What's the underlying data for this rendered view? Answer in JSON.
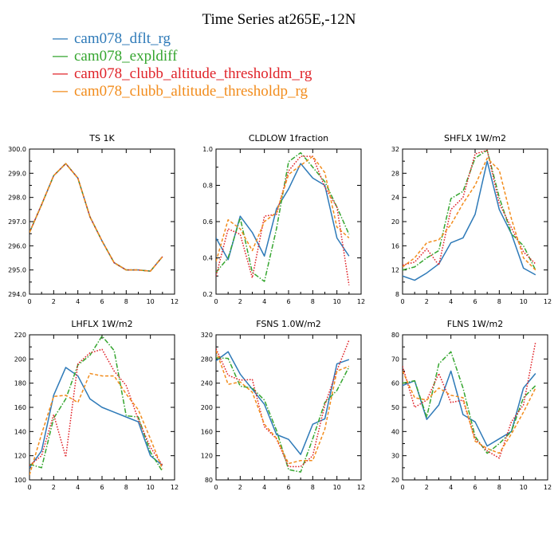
{
  "title": "Time Series at265E,-12N",
  "legend": [
    {
      "label": "cam078_dflt_rg",
      "color": "#2e7ab8",
      "dash": "solid"
    },
    {
      "label": "cam078_expldiff",
      "color": "#36a630",
      "dash": "dashdot"
    },
    {
      "label": "cam078_clubb_altitude_thresholdm_rg",
      "color": "#e0242a",
      "dash": "dot"
    },
    {
      "label": "cam078_clubb_altitude_thresholdp_rg",
      "color": "#f28c1c",
      "dash": "dash"
    }
  ],
  "chart_data": [
    {
      "type": "line",
      "title": "TS   1K",
      "xlim": [
        0,
        12
      ],
      "ylim": [
        294.0,
        300.0
      ],
      "xticks": [
        "0",
        "2",
        "4",
        "6",
        "8",
        "10",
        "12"
      ],
      "yticks": [
        "294.0",
        "295.0",
        "296.0",
        "297.0",
        "298.0",
        "299.0",
        "300.0"
      ],
      "x": [
        0,
        1,
        2,
        3,
        4,
        5,
        6,
        7,
        8,
        9,
        10,
        11
      ],
      "series": [
        {
          "name": "cam078_dflt_rg",
          "values": [
            296.55,
            297.7,
            298.9,
            299.4,
            298.8,
            297.2,
            296.2,
            295.3,
            295.0,
            295.0,
            294.95,
            295.55
          ]
        },
        {
          "name": "cam078_expldiff",
          "values": [
            296.55,
            297.7,
            298.9,
            299.4,
            298.8,
            297.2,
            296.2,
            295.3,
            295.0,
            295.0,
            294.95,
            295.55
          ]
        },
        {
          "name": "cam078_clubb_altitude_thresholdm_rg",
          "values": [
            296.55,
            297.7,
            298.9,
            299.4,
            298.8,
            297.2,
            296.2,
            295.3,
            295.0,
            295.0,
            294.95,
            295.55
          ]
        },
        {
          "name": "cam078_clubb_altitude_thresholdp_rg",
          "values": [
            296.55,
            297.7,
            298.9,
            299.4,
            298.8,
            297.2,
            296.2,
            295.3,
            295.0,
            295.0,
            294.95,
            295.55
          ]
        }
      ]
    },
    {
      "type": "line",
      "title": "CLDLOW   1fraction",
      "xlim": [
        0,
        12
      ],
      "ylim": [
        0.2,
        1.0
      ],
      "xticks": [
        "0",
        "2",
        "4",
        "6",
        "8",
        "10",
        "12"
      ],
      "yticks": [
        "0.2",
        "0.4",
        "0.6",
        "0.8",
        "1.0"
      ],
      "x": [
        0,
        1,
        2,
        3,
        4,
        5,
        6,
        7,
        8,
        9,
        10,
        11
      ],
      "series": [
        {
          "name": "cam078_dflt_rg",
          "values": [
            0.51,
            0.39,
            0.63,
            0.54,
            0.41,
            0.67,
            0.78,
            0.92,
            0.84,
            0.8,
            0.51,
            0.41
          ]
        },
        {
          "name": "cam078_expldiff",
          "values": [
            0.32,
            0.4,
            0.62,
            0.32,
            0.27,
            0.56,
            0.93,
            0.98,
            0.9,
            0.82,
            0.68,
            0.53
          ]
        },
        {
          "name": "cam078_clubb_altitude_thresholdm_rg",
          "values": [
            0.3,
            0.56,
            0.53,
            0.29,
            0.63,
            0.64,
            0.88,
            0.96,
            0.96,
            0.79,
            0.68,
            0.25
          ]
        },
        {
          "name": "cam078_clubb_altitude_thresholdp_rg",
          "values": [
            0.38,
            0.61,
            0.56,
            0.44,
            0.6,
            0.65,
            0.86,
            0.91,
            0.96,
            0.87,
            0.57,
            0.51
          ]
        }
      ]
    },
    {
      "type": "line",
      "title": "SHFLX   1W/m2",
      "xlim": [
        0,
        12
      ],
      "ylim": [
        8,
        32
      ],
      "xticks": [
        "0",
        "2",
        "4",
        "6",
        "8",
        "10",
        "12"
      ],
      "yticks": [
        "8",
        "12",
        "16",
        "20",
        "24",
        "28",
        "32"
      ],
      "x": [
        0,
        1,
        2,
        3,
        4,
        5,
        6,
        7,
        8,
        9,
        10,
        11
      ],
      "series": [
        {
          "name": "cam078_dflt_rg",
          "values": [
            11.0,
            10.3,
            11.5,
            13.0,
            16.5,
            17.3,
            21.2,
            30.0,
            22.0,
            18.0,
            12.3,
            11.2
          ]
        },
        {
          "name": "cam078_expldiff",
          "values": [
            12.0,
            12.5,
            14.0,
            15.2,
            23.8,
            25.0,
            30.5,
            31.8,
            24.0,
            18.0,
            16.0,
            12.0
          ]
        },
        {
          "name": "cam078_clubb_altitude_thresholdm_rg",
          "values": [
            12.8,
            13.3,
            15.5,
            12.8,
            22.0,
            24.0,
            31.2,
            31.8,
            23.0,
            19.0,
            15.0,
            13.0
          ]
        },
        {
          "name": "cam078_clubb_altitude_thresholdp_rg",
          "values": [
            12.5,
            14.0,
            16.5,
            17.0,
            19.5,
            23.0,
            26.0,
            30.5,
            28.5,
            20.5,
            14.0,
            12.0
          ]
        }
      ]
    },
    {
      "type": "line",
      "title": "LHFLX   1W/m2",
      "xlim": [
        0,
        12
      ],
      "ylim": [
        100,
        220
      ],
      "xticks": [
        "0",
        "2",
        "4",
        "6",
        "8",
        "10",
        "12"
      ],
      "yticks": [
        "100",
        "120",
        "140",
        "160",
        "180",
        "200",
        "220"
      ],
      "x": [
        0,
        1,
        2,
        3,
        4,
        5,
        6,
        7,
        8,
        9,
        10,
        11
      ],
      "series": [
        {
          "name": "cam078_dflt_rg",
          "values": [
            110,
            124,
            170,
            193,
            186,
            167,
            160,
            156,
            152,
            148,
            120,
            112
          ]
        },
        {
          "name": "cam078_expldiff",
          "values": [
            113,
            110,
            151,
            167,
            195,
            203,
            219,
            207,
            153,
            152,
            123,
            107
          ]
        },
        {
          "name": "cam078_clubb_altitude_thresholdm_rg",
          "values": [
            112,
            120,
            154,
            119,
            196,
            205,
            208,
            190,
            178,
            150,
            127,
            112
          ]
        },
        {
          "name": "cam078_clubb_altitude_thresholdp_rg",
          "values": [
            104,
            138,
            169,
            170,
            164,
            188,
            186,
            186,
            171,
            158,
            134,
            109
          ]
        }
      ]
    },
    {
      "type": "line",
      "title": "FSNS   1.0W/m2",
      "xlim": [
        0,
        12
      ],
      "ylim": [
        80,
        320
      ],
      "xticks": [
        "0",
        "2",
        "4",
        "6",
        "8",
        "10",
        "12"
      ],
      "yticks": [
        "80",
        "120",
        "160",
        "200",
        "240",
        "280",
        "320"
      ],
      "x": [
        0,
        1,
        2,
        3,
        4,
        5,
        6,
        7,
        8,
        9,
        10,
        11
      ],
      "series": [
        {
          "name": "cam078_dflt_rg",
          "values": [
            277,
            292,
            255,
            230,
            205,
            155,
            147,
            122,
            172,
            181,
            272,
            279
          ]
        },
        {
          "name": "cam078_expldiff",
          "values": [
            282,
            281,
            235,
            232,
            212,
            162,
            97,
            93,
            148,
            208,
            228,
            267
          ]
        },
        {
          "name": "cam078_clubb_altitude_thresholdm_rg",
          "values": [
            297,
            253,
            245,
            246,
            168,
            148,
            102,
            102,
            120,
            204,
            261,
            311
          ]
        },
        {
          "name": "cam078_clubb_altitude_thresholdp_rg",
          "values": [
            294,
            238,
            242,
            225,
            172,
            149,
            107,
            112,
            112,
            164,
            260,
            268
          ]
        }
      ]
    },
    {
      "type": "line",
      "title": "FLNS   1W/m2",
      "xlim": [
        0,
        12
      ],
      "ylim": [
        20,
        80
      ],
      "xticks": [
        "0",
        "2",
        "4",
        "6",
        "8",
        "10",
        "12"
      ],
      "yticks": [
        "20",
        "30",
        "40",
        "50",
        "60",
        "70",
        "80"
      ],
      "x": [
        0,
        1,
        2,
        3,
        4,
        5,
        6,
        7,
        8,
        9,
        10,
        11
      ],
      "series": [
        {
          "name": "cam078_dflt_rg",
          "values": [
            59,
            61,
            45,
            51,
            65,
            47,
            44,
            34,
            37,
            40,
            58,
            64
          ]
        },
        {
          "name": "cam078_expldiff",
          "values": [
            60,
            61,
            46,
            68,
            73,
            58,
            38,
            31,
            35,
            40,
            54,
            59
          ]
        },
        {
          "name": "cam078_clubb_altitude_thresholdm_rg",
          "values": [
            67,
            50,
            53,
            64,
            52,
            53,
            37,
            32,
            29,
            44,
            51,
            77
          ]
        },
        {
          "name": "cam078_clubb_altitude_thresholdp_rg",
          "values": [
            65,
            54,
            53,
            58,
            55,
            54,
            36,
            33,
            31,
            39,
            48,
            58
          ]
        }
      ]
    }
  ]
}
